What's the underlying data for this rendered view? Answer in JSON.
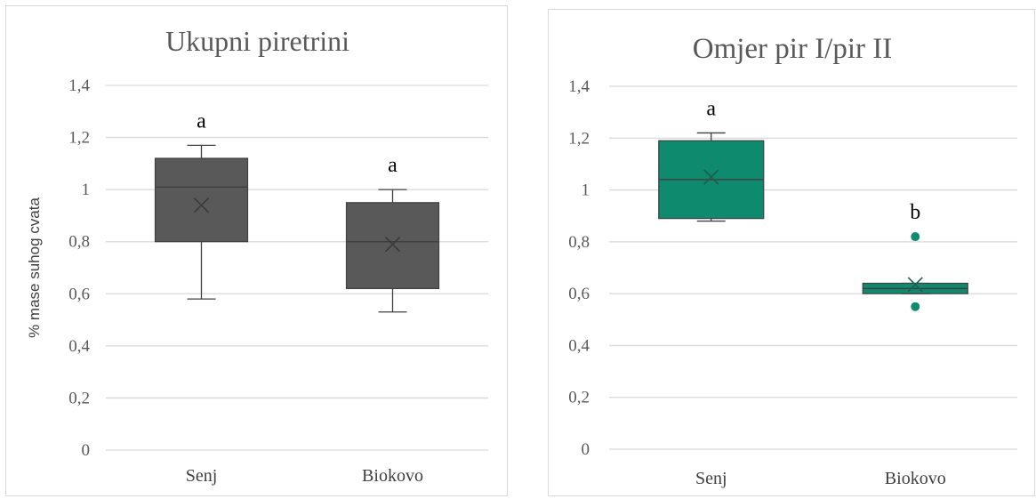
{
  "chart_data": [
    {
      "type": "box",
      "title": "Ukupni piretrini",
      "ylabel": "% mase suhog cvata",
      "ylim": [
        0,
        1.4
      ],
      "yticks": [
        "0",
        "0,2",
        "0,4",
        "0,6",
        "0,8",
        "1",
        "1,2",
        "1,4"
      ],
      "categories": [
        "Senj",
        "Biokovo"
      ],
      "color": "#595959",
      "boxes": [
        {
          "category": "Senj",
          "min": 0.58,
          "q1": 0.8,
          "median": 1.01,
          "q3": 1.12,
          "max": 1.17,
          "mean": 0.94,
          "outliers": [],
          "letter": "a"
        },
        {
          "category": "Biokovo",
          "min": 0.53,
          "q1": 0.62,
          "median": 0.8,
          "q3": 0.95,
          "max": 1.0,
          "mean": 0.79,
          "outliers": [],
          "letter": "a"
        }
      ]
    },
    {
      "type": "box",
      "title": "Omjer pir I/pir II",
      "ylabel": "",
      "ylim": [
        0,
        1.4
      ],
      "yticks": [
        "0",
        "0,2",
        "0,4",
        "0,6",
        "0,8",
        "1",
        "1,2",
        "1,4"
      ],
      "categories": [
        "Senj",
        "Biokovo"
      ],
      "color": "#0e8a6e",
      "boxes": [
        {
          "category": "Senj",
          "min": 0.88,
          "q1": 0.89,
          "median": 1.04,
          "q3": 1.19,
          "max": 1.22,
          "mean": 1.05,
          "outliers": [],
          "letter": "a"
        },
        {
          "category": "Biokovo",
          "min": 0.6,
          "q1": 0.6,
          "median": 0.62,
          "q3": 0.64,
          "max": 0.64,
          "mean": 0.635,
          "outliers": [
            0.82,
            0.55
          ],
          "letter": "b"
        }
      ]
    }
  ]
}
